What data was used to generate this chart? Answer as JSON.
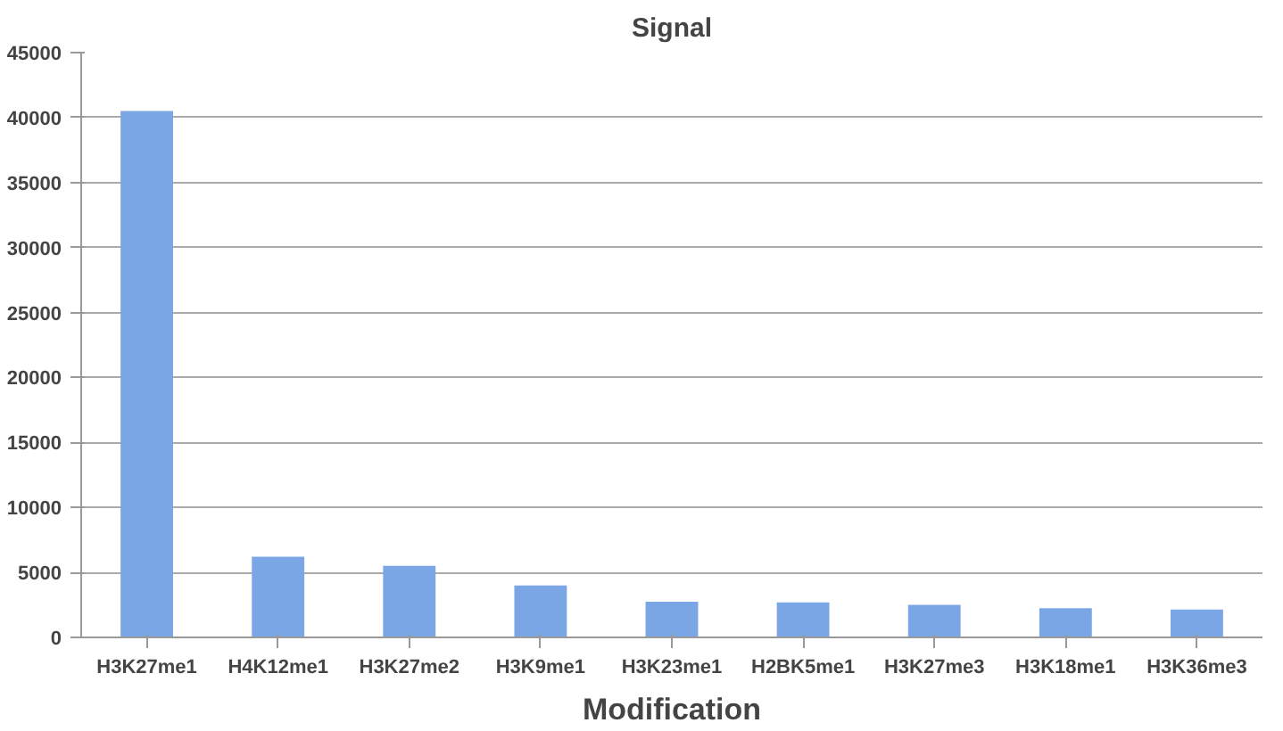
{
  "chart_data": {
    "type": "bar",
    "title": "Signal",
    "xlabel": "Modification",
    "categories": [
      "H3K27me1",
      "H4K12me1",
      "H3K27me2",
      "H3K9me1",
      "H3K23me1",
      "H2BK5me1",
      "H3K27me3",
      "H3K18me1",
      "H3K36me3"
    ],
    "values": [
      40500,
      6200,
      5500,
      4000,
      2750,
      2700,
      2500,
      2250,
      2150
    ],
    "color": "#7aa6e6",
    "ylim": [
      0,
      45000
    ],
    "yticks": [
      0,
      5000,
      10000,
      15000,
      20000,
      25000,
      30000,
      35000,
      40000,
      45000
    ],
    "grid": "y"
  }
}
